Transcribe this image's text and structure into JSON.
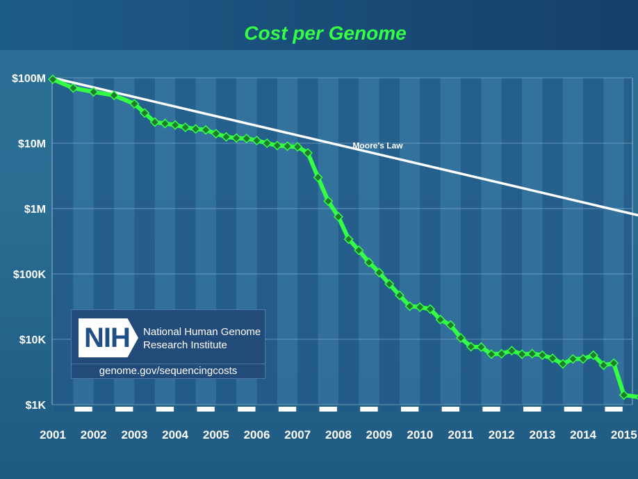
{
  "chart_data": {
    "type": "line",
    "title": "Cost per Genome",
    "y_scale": "log",
    "ylim": [
      1000,
      100000000
    ],
    "y_ticks": [
      {
        "value": 100000000,
        "label": "$100M"
      },
      {
        "value": 10000000,
        "label": "$10M"
      },
      {
        "value": 1000000,
        "label": "$1M"
      },
      {
        "value": 100000,
        "label": "$100K"
      },
      {
        "value": 10000,
        "label": "$10K"
      },
      {
        "value": 1000,
        "label": "$1K"
      }
    ],
    "xlim": [
      2001.0,
      2015.5
    ],
    "x_ticks": [
      {
        "value": 2001,
        "label": "2001"
      },
      {
        "value": 2002,
        "label": "2002"
      },
      {
        "value": 2003,
        "label": "2003"
      },
      {
        "value": 2004,
        "label": "2004"
      },
      {
        "value": 2005,
        "label": "2005"
      },
      {
        "value": 2006,
        "label": "2006"
      },
      {
        "value": 2007,
        "label": "2007"
      },
      {
        "value": 2008,
        "label": "2008"
      },
      {
        "value": 2009,
        "label": "2009"
      },
      {
        "value": 2010,
        "label": "2010"
      },
      {
        "value": 2011,
        "label": "2011"
      },
      {
        "value": 2012,
        "label": "2012"
      },
      {
        "value": 2013,
        "label": "2013"
      },
      {
        "value": 2014,
        "label": "2014"
      },
      {
        "value": 2015,
        "label": "2015"
      }
    ],
    "series": [
      {
        "name": "",
        "color": "#33ff44",
        "marker_color": "#1f7a2e",
        "points": [
          [
            2001.0,
            95000000
          ],
          [
            2001.5,
            70000000
          ],
          [
            2002.0,
            61000000
          ],
          [
            2002.5,
            54000000
          ],
          [
            2003.0,
            40000000
          ],
          [
            2003.25,
            29000000
          ],
          [
            2003.5,
            21000000
          ],
          [
            2003.75,
            20000000
          ],
          [
            2004.0,
            19000000
          ],
          [
            2004.25,
            17500000
          ],
          [
            2004.5,
            16500000
          ],
          [
            2004.75,
            16000000
          ],
          [
            2005.0,
            14000000
          ],
          [
            2005.25,
            12500000
          ],
          [
            2005.5,
            12000000
          ],
          [
            2005.75,
            11800000
          ],
          [
            2006.0,
            11000000
          ],
          [
            2006.25,
            10000000
          ],
          [
            2006.5,
            9200000
          ],
          [
            2006.75,
            9000000
          ],
          [
            2007.0,
            8800000
          ],
          [
            2007.25,
            7100000
          ],
          [
            2007.5,
            3000000
          ],
          [
            2007.75,
            1300000
          ],
          [
            2008.0,
            750000
          ],
          [
            2008.25,
            340000
          ],
          [
            2008.5,
            230000
          ],
          [
            2008.75,
            150000
          ],
          [
            2009.0,
            105000
          ],
          [
            2009.25,
            70000
          ],
          [
            2009.5,
            47000
          ],
          [
            2009.75,
            32000
          ],
          [
            2010.0,
            31000
          ],
          [
            2010.25,
            29000
          ],
          [
            2010.5,
            20000
          ],
          [
            2010.75,
            16500
          ],
          [
            2011.0,
            10500
          ],
          [
            2011.25,
            7700
          ],
          [
            2011.5,
            7600
          ],
          [
            2011.75,
            5900
          ],
          [
            2012.0,
            6000
          ],
          [
            2012.25,
            6700
          ],
          [
            2012.5,
            5900
          ],
          [
            2012.75,
            6000
          ],
          [
            2013.0,
            5700
          ],
          [
            2013.25,
            5100
          ],
          [
            2013.5,
            4200
          ],
          [
            2013.75,
            5000
          ],
          [
            2014.0,
            5000
          ],
          [
            2014.25,
            5700
          ],
          [
            2014.5,
            4000
          ],
          [
            2014.75,
            4300
          ],
          [
            2015.0,
            1400
          ],
          [
            2015.4,
            1300
          ]
        ]
      },
      {
        "name": "Moore's Law",
        "color": "#ffffff",
        "points": [
          [
            2001.0,
            100000000
          ],
          [
            2015.5,
            750000
          ]
        ]
      }
    ],
    "annotations": [
      {
        "text": "Moore's Law",
        "x": 2008.35,
        "y": 8300000
      }
    ],
    "legend": "none",
    "grid": true
  },
  "logo": {
    "mark": "NIH",
    "name_line1": "National Human Genome",
    "name_line2": "Research Institute",
    "url": "genome.gov/sequencingcosts"
  }
}
